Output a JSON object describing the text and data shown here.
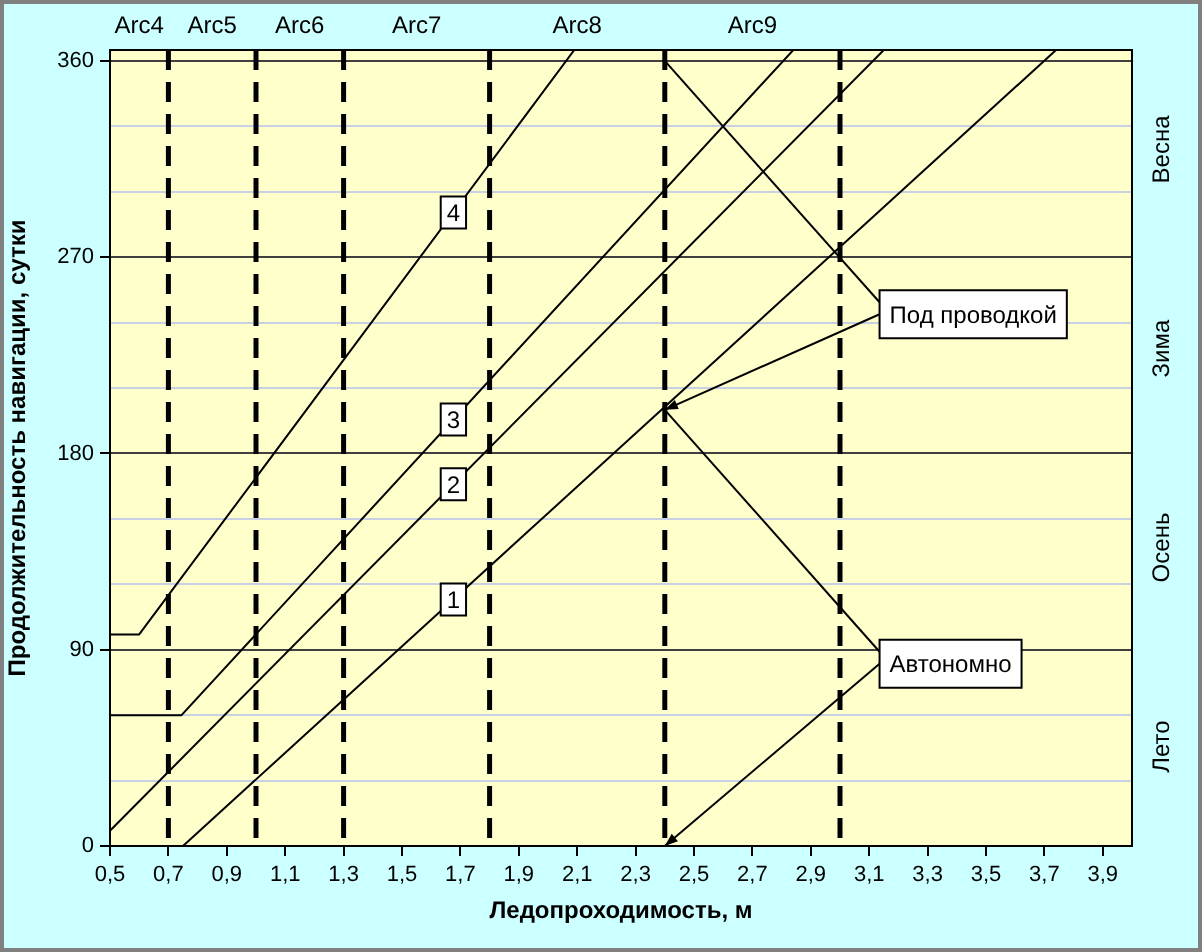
{
  "chart_data": {
    "type": "line",
    "xlabel": "Ледопроходимость, м",
    "ylabel": "Продолжительность навигации, сутки",
    "xlim": [
      0.5,
      4.0
    ],
    "xticks": [
      {
        "value": 0.5,
        "label": "0,5"
      },
      {
        "value": 0.7,
        "label": "0,7"
      },
      {
        "value": 0.9,
        "label": "0,9"
      },
      {
        "value": 1.1,
        "label": "1,1"
      },
      {
        "value": 1.3,
        "label": "1,3"
      },
      {
        "value": 1.5,
        "label": "1,5"
      },
      {
        "value": 1.7,
        "label": "1,7"
      },
      {
        "value": 1.9,
        "label": "1,9"
      },
      {
        "value": 2.1,
        "label": "2,1"
      },
      {
        "value": 2.3,
        "label": "2,3"
      },
      {
        "value": 2.5,
        "label": "2,5"
      },
      {
        "value": 2.7,
        "label": "2,7"
      },
      {
        "value": 2.9,
        "label": "2,9"
      },
      {
        "value": 3.1,
        "label": "3,1"
      },
      {
        "value": 3.3,
        "label": "3,3"
      },
      {
        "value": 3.5,
        "label": "3,5"
      },
      {
        "value": 3.7,
        "label": "3,7"
      },
      {
        "value": 3.9,
        "label": "3,9"
      }
    ],
    "ylim": [
      0,
      365
    ],
    "yticks": [
      0,
      {
        "value": 30,
        "label": null
      },
      {
        "value": 60,
        "label": null
      },
      90,
      {
        "value": 120,
        "label": null
      },
      {
        "value": 150,
        "label": null
      },
      180,
      {
        "value": 210,
        "label": null
      },
      {
        "value": 240,
        "label": null
      },
      270,
      {
        "value": 300,
        "label": null
      },
      {
        "value": 330,
        "label": null
      },
      360
    ],
    "grid": "y",
    "series": [
      {
        "name": "1",
        "color": "#000000",
        "x": [
          0.75,
          3.74
        ],
        "values": [
          0,
          365
        ]
      },
      {
        "name": "2",
        "color": "#000000",
        "x": [
          0.5,
          3.15
        ],
        "values": [
          7,
          365
        ]
      },
      {
        "name": "3",
        "color": "#000000",
        "x": [
          0.5,
          0.745,
          2.84
        ],
        "values": [
          60,
          60,
          365
        ]
      },
      {
        "name": "4",
        "color": "#000000",
        "x": [
          0.5,
          0.6,
          2.09
        ],
        "values": [
          97,
          97,
          365
        ]
      }
    ],
    "ref_lines": [
      {
        "axis": "x",
        "value": 0.7,
        "label": "Arc4",
        "color": "#000000",
        "line_style": "dashed"
      },
      {
        "axis": "x",
        "value": 1.0,
        "label": "Arc5",
        "color": "#000000",
        "line_style": "dashed"
      },
      {
        "axis": "x",
        "value": 1.3,
        "label": "Arc6",
        "color": "#000000",
        "line_style": "dashed"
      },
      {
        "axis": "x",
        "value": 1.8,
        "label": "Arc7",
        "color": "#000000",
        "line_style": "dashed"
      },
      {
        "axis": "x",
        "value": 2.4,
        "label": "Arc8",
        "color": "#000000",
        "line_style": "dashed"
      },
      {
        "axis": "x",
        "value": 3.0,
        "label": "Arc9",
        "color": "#000000",
        "line_style": "dashed"
      }
    ],
    "annotations": [
      {
        "text": "Под проводкой",
        "x": 2.4,
        "y": 200
      },
      {
        "text": "Автономно",
        "x": 2.4,
        "y": 0
      },
      "Весна",
      "Зима",
      "Осень",
      "Лето"
    ]
  }
}
